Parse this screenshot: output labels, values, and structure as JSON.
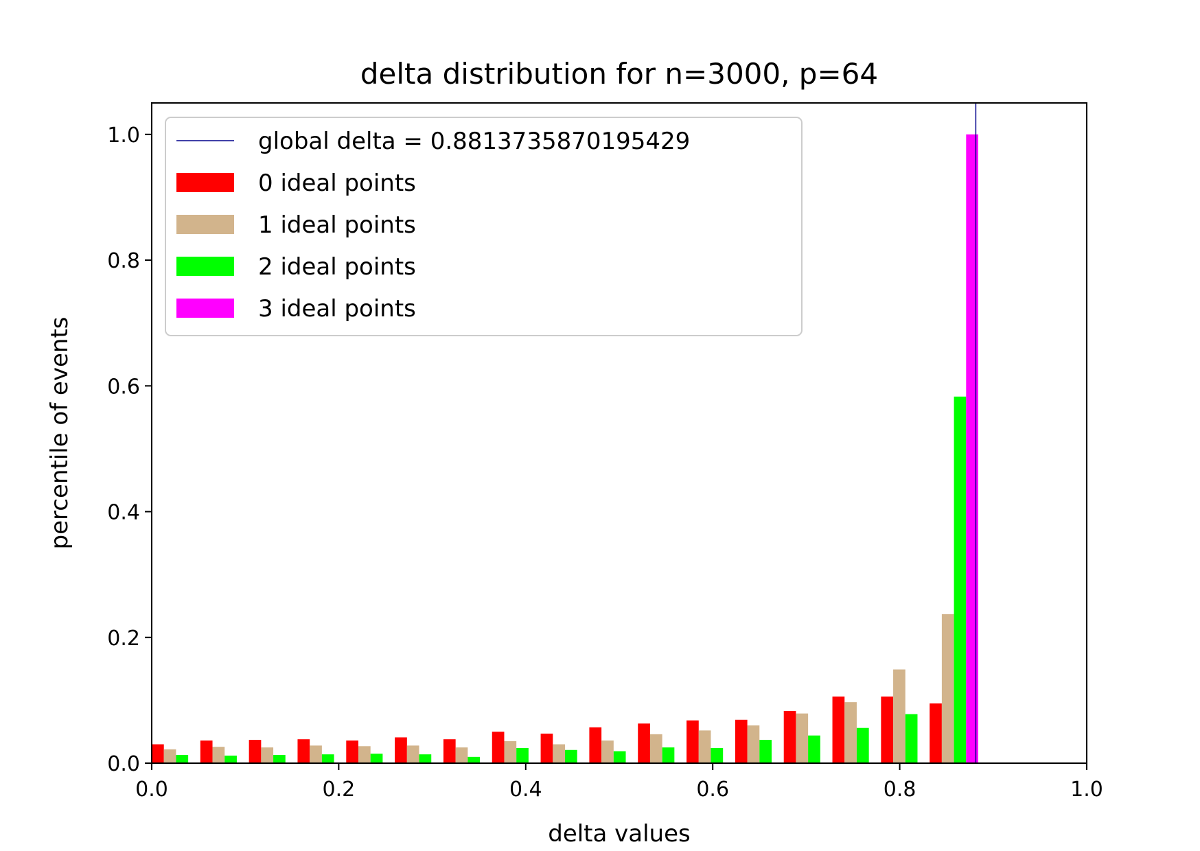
{
  "chart_data": {
    "type": "bar",
    "title": "delta distribution for n=3000, p=64",
    "xlabel": "delta values",
    "ylabel": "percentile of events",
    "xlim": [
      0.0,
      1.0
    ],
    "ylim": [
      0.0,
      1.05
    ],
    "xticks": [
      "0.0",
      "0.2",
      "0.4",
      "0.6",
      "0.8",
      "1.0"
    ],
    "yticks": [
      "0.0",
      "0.2",
      "0.4",
      "0.6",
      "0.8",
      "1.0"
    ],
    "grid": false,
    "legend_position": "upper-left",
    "reference_line": {
      "label": "global delta = 0.8813735870195429",
      "x": 0.8813735870195429,
      "color": "#00008b"
    },
    "bin_starts": [
      0.0,
      0.052,
      0.104,
      0.156,
      0.208,
      0.26,
      0.312,
      0.364,
      0.416,
      0.468,
      0.52,
      0.572,
      0.624,
      0.676,
      0.728,
      0.78,
      0.832
    ],
    "series": [
      {
        "name": "0 ideal points",
        "color": "#ff0000",
        "values": [
          0.03,
          0.036,
          0.037,
          0.038,
          0.036,
          0.041,
          0.038,
          0.05,
          0.047,
          0.057,
          0.063,
          0.068,
          0.069,
          0.083,
          0.106,
          0.106,
          0.095
        ]
      },
      {
        "name": "1 ideal points",
        "color": "#d2b48c",
        "values": [
          0.022,
          0.026,
          0.025,
          0.028,
          0.027,
          0.028,
          0.025,
          0.035,
          0.03,
          0.036,
          0.046,
          0.052,
          0.06,
          0.079,
          0.097,
          0.149,
          0.237
        ]
      },
      {
        "name": "2 ideal points",
        "color": "#00ff00",
        "values": [
          0.013,
          0.012,
          0.013,
          0.014,
          0.015,
          0.014,
          0.01,
          0.024,
          0.021,
          0.019,
          0.025,
          0.024,
          0.037,
          0.044,
          0.056,
          0.078,
          0.583
        ]
      },
      {
        "name": "3 ideal points",
        "color": "#ff00ff",
        "values": [
          0,
          0,
          0,
          0,
          0,
          0,
          0,
          0,
          0,
          0,
          0,
          0,
          0,
          0,
          0,
          0,
          1.0
        ]
      }
    ]
  }
}
